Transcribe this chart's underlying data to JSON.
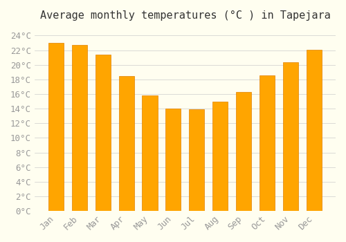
{
  "title": "Average monthly temperatures (°C ) in Tapejara",
  "months": [
    "Jan",
    "Feb",
    "Mar",
    "Apr",
    "May",
    "Jun",
    "Jul",
    "Aug",
    "Sep",
    "Oct",
    "Nov",
    "Dec"
  ],
  "values": [
    23.0,
    22.7,
    21.4,
    18.5,
    15.8,
    14.0,
    13.9,
    15.0,
    16.3,
    18.6,
    20.4,
    22.1
  ],
  "bar_color": "#FFA500",
  "bar_edge_color": "#E08000",
  "background_color": "#FFFEF0",
  "grid_color": "#CCCCCC",
  "ylim": [
    0,
    25
  ],
  "ytick_step": 2,
  "title_fontsize": 11,
  "tick_fontsize": 9
}
